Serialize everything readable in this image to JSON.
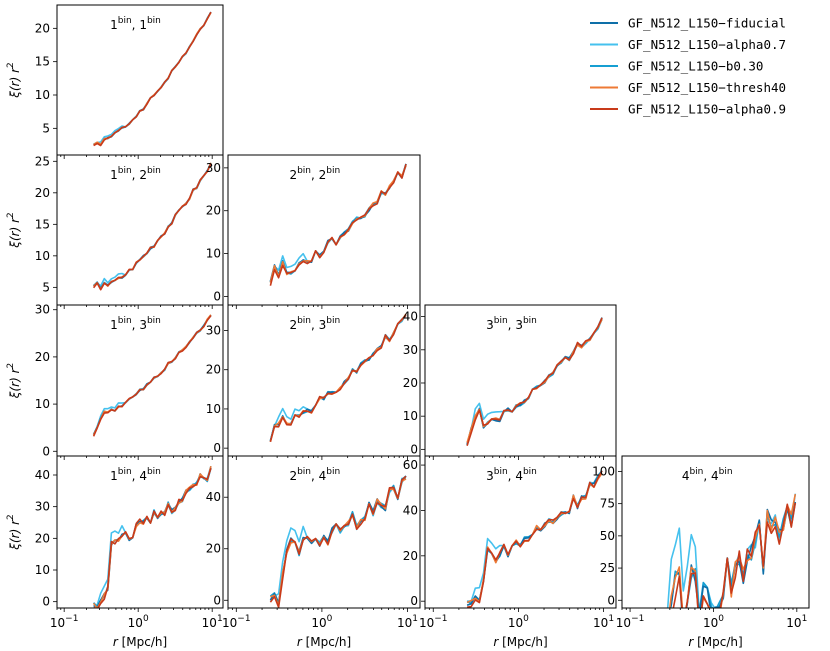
{
  "chart_data": {
    "type": "line",
    "layout": "lower-triangular grid 4x4",
    "xscale": "log",
    "xlim": [
      0.08,
      14
    ],
    "xticks": [
      0.1,
      1,
      10
    ],
    "xtick_labels": [
      {
        "base": "10",
        "exp": "−1"
      },
      {
        "base": "10",
        "exp": "0"
      },
      {
        "base": "10",
        "exp": "1"
      }
    ],
    "xlabel": {
      "italic": "r",
      "rest": " [Mpc/h]"
    },
    "ylabel": {
      "main": "ξ(r) r",
      "sup": "2"
    },
    "legend": {
      "placement": "top-right",
      "entries": [
        {
          "label": "GF_N512_L150−fiducial",
          "color": "#0e6fa8"
        },
        {
          "label": "GF_N512_L150−alpha0.7",
          "color": "#45c1ee"
        },
        {
          "label": "GF_N512_L150−b0.30",
          "color": "#169fd2"
        },
        {
          "label": "GF_N512_L150−thresh40",
          "color": "#ee7a35"
        },
        {
          "label": "GF_N512_L150−alpha0.9",
          "color": "#c83a1a"
        }
      ]
    },
    "panels": [
      {
        "row": 1,
        "col": 1,
        "title": {
          "i": "1",
          "j": "1",
          "bin": "bin"
        },
        "ylim": [
          1.0,
          23.5
        ],
        "yticks": [
          5,
          10,
          15,
          20
        ],
        "x_start": 0.25,
        "jitter": 0.25,
        "seed": 1,
        "low": [
          2.4,
          3.0,
          2.6,
          3.2,
          3.6
        ],
        "high": 22.3
      },
      {
        "row": 2,
        "col": 1,
        "title": {
          "i": "1",
          "j": "2",
          "bin": "bin"
        },
        "ylim": [
          2.2,
          26.0
        ],
        "yticks": [
          5,
          10,
          15,
          20,
          25
        ],
        "x_start": 0.25,
        "jitter": 0.4,
        "seed": 2,
        "low": [
          5.0,
          5.5,
          5.0,
          6.0,
          5.4
        ],
        "high": 24.5
      },
      {
        "row": 2,
        "col": 2,
        "title": {
          "i": "2",
          "j": "2",
          "bin": "bin"
        },
        "ylim": [
          -2.0,
          33.0
        ],
        "yticks": [
          0,
          10,
          20,
          30
        ],
        "x_start": 0.25,
        "jitter": 1.2,
        "seed": 3,
        "low": [
          3.0,
          7.0,
          4.0,
          8.0,
          6.0
        ],
        "high": 30.0
      },
      {
        "row": 3,
        "col": 1,
        "title": {
          "i": "1",
          "j": "3",
          "bin": "bin"
        },
        "ylim": [
          -1.0,
          31.0
        ],
        "yticks": [
          0,
          10,
          20,
          30
        ],
        "x_start": 0.25,
        "jitter": 0.5,
        "seed": 4,
        "low": [
          3.5,
          5.5,
          7.0,
          8.0,
          8.5
        ],
        "high": 28.5
      },
      {
        "row": 3,
        "col": 2,
        "title": {
          "i": "2",
          "j": "3",
          "bin": "bin"
        },
        "ylim": [
          -2.0,
          36.5
        ],
        "yticks": [
          0,
          10,
          20,
          30
        ],
        "x_start": 0.25,
        "jitter": 1.2,
        "seed": 5,
        "low": [
          2.0,
          5.0,
          7.0,
          9.0,
          7.0
        ],
        "high": 33.5
      },
      {
        "row": 3,
        "col": 3,
        "title": {
          "i": "3",
          "j": "3",
          "bin": "bin"
        },
        "ylim": [
          -2.0,
          43.5
        ],
        "yticks": [
          0,
          10,
          20,
          30,
          40
        ],
        "x_start": 0.25,
        "jitter": 1.6,
        "seed": 6,
        "low": [
          2.0,
          6.0,
          9.0,
          12.0,
          8.0
        ],
        "high": 38.5
      },
      {
        "row": 4,
        "col": 1,
        "title": {
          "i": "1",
          "j": "4",
          "bin": "bin"
        },
        "ylim": [
          -2.0,
          46.0
        ],
        "yticks": [
          0,
          10,
          20,
          30,
          40
        ],
        "x_start": 0.25,
        "jitter": 2.2,
        "seed": 7,
        "low": [
          0.0,
          0.0,
          0.0,
          0.5,
          6.0,
          17.0,
          20.0
        ],
        "high": 41.0
      },
      {
        "row": 4,
        "col": 2,
        "title": {
          "i": "2",
          "j": "4",
          "bin": "bin"
        },
        "ylim": [
          -3.0,
          56.0
        ],
        "yticks": [
          0,
          20,
          40
        ],
        "x_start": 0.25,
        "jitter": 3.5,
        "seed": 8,
        "low": [
          3.0,
          0.0,
          1.0,
          12.0,
          22.0,
          25.0,
          20.0
        ],
        "high": 45.0
      },
      {
        "row": 4,
        "col": 3,
        "title": {
          "i": "3",
          "j": "4",
          "bin": "bin"
        },
        "ylim": [
          -3.0,
          64.0
        ],
        "yticks": [
          0,
          20,
          40,
          60
        ],
        "x_start": 0.25,
        "jitter": 3.5,
        "seed": 9,
        "low": [
          2.0,
          0.0,
          0.0,
          0.0,
          12.0,
          22.0,
          20.0
        ],
        "high": 55.0
      },
      {
        "row": 4,
        "col": 4,
        "title": {
          "i": "4",
          "j": "4",
          "bin": "bin"
        },
        "ylim": [
          -6.0,
          112.0
        ],
        "yticks": [
          0,
          25,
          50,
          75,
          100
        ],
        "x_start": 0.25,
        "jitter": 22.0,
        "seed": 10,
        "low": [
          0.0,
          0.0,
          0.0,
          0.0,
          0.0,
          0.0
        ],
        "high": 65.0
      }
    ]
  }
}
